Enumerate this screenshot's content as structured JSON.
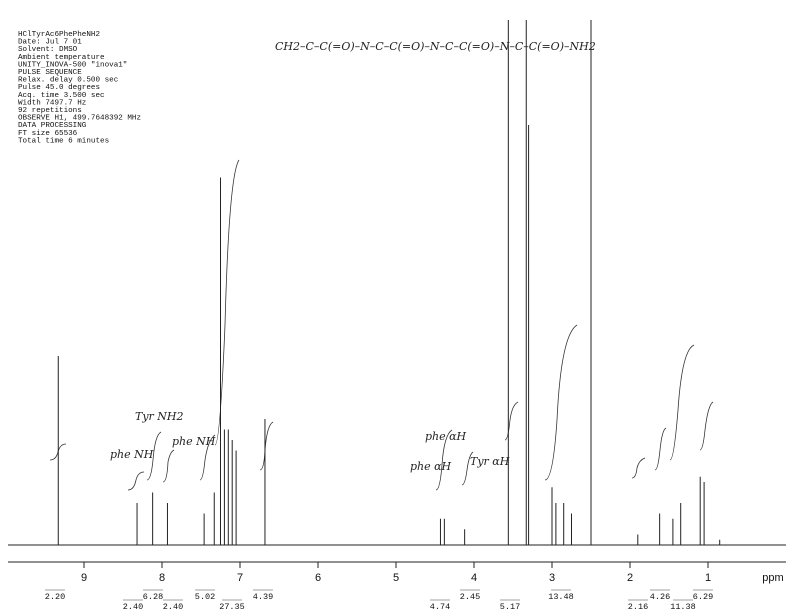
{
  "chart_data": {
    "type": "nmr",
    "header": [
      "HClTyrAc6PhePheNH2",
      " Date: Jul  7 01",
      " Solvent: DMSO",
      " Ambient temperature",
      "UNITY_INOVA-500  \"inova1\"",
      "PULSE SEQUENCE",
      " Relax. delay 0.500 sec",
      " Pulse 45.0 degrees",
      " Acq. time 3.500 sec",
      " Width 7497.7 Hz",
      " 92 repetitions",
      "OBSERVE   H1, 499.7648392 MHz",
      "DATA PROCESSING",
      "FT size 65536",
      "Total time 6 minutes"
    ],
    "structure": "CH2–C–C(=O)–N–C–C(=O)–N–C–C(=O)–N–C–C(=O)–NH2",
    "x_label": "ppm",
    "xlim": [
      10,
      0
    ],
    "xticks": [
      9,
      8,
      7,
      6,
      5,
      4,
      3,
      2,
      1
    ],
    "ylim": [
      0,
      100
    ],
    "x": [
      9.33,
      8.32,
      8.12,
      7.93,
      7.46,
      7.33,
      7.25,
      7.2,
      7.15,
      7.1,
      7.05,
      6.68,
      4.43,
      4.38,
      4.12,
      3.56,
      3.33,
      3.3,
      3.0,
      2.95,
      2.85,
      2.75,
      2.5,
      1.9,
      1.62,
      1.45,
      1.35,
      1.1,
      1.05,
      0.85
    ],
    "values": [
      36,
      8,
      10,
      8,
      6,
      10,
      70,
      22,
      22,
      20,
      18,
      24,
      5,
      5,
      3,
      100,
      100,
      80,
      11,
      8,
      8,
      6,
      100,
      2,
      6,
      5,
      8,
      13,
      12,
      1
    ],
    "color": "#222222",
    "integrals": [
      "2.20",
      "2.40",
      "6.28",
      "2.40",
      "5.02",
      "27.35",
      "4.39",
      "4.74",
      "2.45",
      "5.17",
      "13.48",
      "2.16",
      "4.26",
      "11.38",
      "6.29"
    ],
    "annotations": [
      "phe NH",
      "Tyr NH2",
      "phe NH",
      "phe αH",
      "phe αH",
      "Tyr αH"
    ]
  }
}
